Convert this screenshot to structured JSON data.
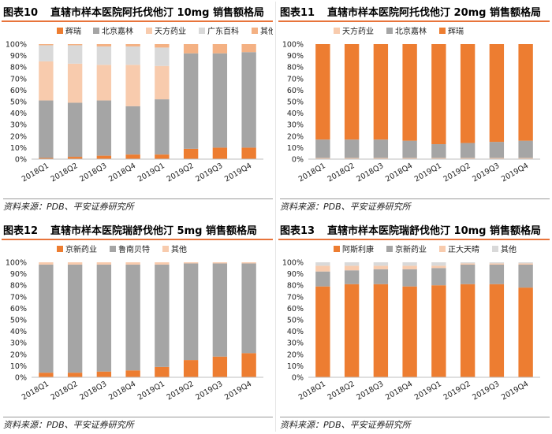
{
  "panels": [
    {
      "fig_no": "图表10",
      "title": "直辖市样本医院阿托伐他汀 10mg 销售额格局",
      "source": "资料来源：PDB、平安证券研究所",
      "chart_data": {
        "type": "bar",
        "stacked": true,
        "categories": [
          "2018Q1",
          "2018Q2",
          "2018Q3",
          "2018Q4",
          "2019Q1",
          "2019Q2",
          "2019Q3",
          "2019Q4"
        ],
        "ylim": [
          0,
          100
        ],
        "y_ticks": [
          "0%",
          "10%",
          "20%",
          "30%",
          "40%",
          "50%",
          "60%",
          "70%",
          "80%",
          "90%",
          "100%"
        ],
        "legend": "top",
        "grid": false,
        "series": [
          {
            "name": "辉瑞",
            "color": "#ed7d31",
            "values": [
              1,
              2,
              3,
              4,
              4,
              9,
              10,
              10
            ]
          },
          {
            "name": "北京嘉林",
            "color": "#a5a5a5",
            "values": [
              50,
              47,
              48,
              42,
              48,
              83,
              82,
              83
            ]
          },
          {
            "name": "天方药业",
            "color": "#f8cbad",
            "values": [
              34,
              34,
              31,
              36,
              29,
              0,
              0,
              0
            ]
          },
          {
            "name": "广东百科",
            "color": "#d9d9d9",
            "values": [
              14,
              16,
              16,
              16,
              16,
              0,
              0,
              0
            ]
          },
          {
            "name": "其他",
            "color": "#f4b183",
            "values": [
              1,
              1,
              2,
              2,
              3,
              8,
              8,
              7
            ]
          }
        ]
      }
    },
    {
      "fig_no": "图表11",
      "title": "直辖市样本医院阿托伐他汀 20mg 销售额格局",
      "source": "资料来源：PDB、平安证券研究所",
      "chart_data": {
        "type": "bar",
        "stacked": true,
        "categories": [
          "2018Q1",
          "2018Q2",
          "2018Q3",
          "2018Q4",
          "2019Q1",
          "2019Q2",
          "2019Q3",
          "2019Q4"
        ],
        "ylim": [
          0,
          100
        ],
        "y_ticks": [
          "0%",
          "10%",
          "20%",
          "30%",
          "40%",
          "50%",
          "60%",
          "70%",
          "80%",
          "90%",
          "100%"
        ],
        "legend": "top",
        "grid": false,
        "series": [
          {
            "name": "天方药业",
            "color": "#f8cbad",
            "values": [
              1,
              1,
              1,
              1,
              1,
              1,
              1,
              1
            ]
          },
          {
            "name": "北京嘉林",
            "color": "#a5a5a5",
            "values": [
              16,
              16,
              16,
              15,
              12,
              13,
              14,
              15
            ]
          },
          {
            "name": "辉瑞",
            "color": "#ed7d31",
            "values": [
              83,
              83,
              83,
              84,
              87,
              86,
              85,
              84
            ]
          }
        ]
      }
    },
    {
      "fig_no": "图表12",
      "title": "直辖市样本医院瑞舒伐他汀 5mg 销售额格局",
      "source": "资料来源：PDB、平安证券研究所",
      "chart_data": {
        "type": "bar",
        "stacked": true,
        "categories": [
          "2018Q1",
          "2018Q2",
          "2018Q3",
          "2018Q4",
          "2019Q1",
          "2019Q2",
          "2019Q3",
          "2019Q4"
        ],
        "ylim": [
          0,
          100
        ],
        "y_ticks": [
          "0%",
          "10%",
          "20%",
          "30%",
          "40%",
          "50%",
          "60%",
          "70%",
          "80%",
          "90%",
          "100%"
        ],
        "legend": "top",
        "grid": false,
        "series": [
          {
            "name": "京新药业",
            "color": "#ed7d31",
            "values": [
              4,
              4,
              5,
              6,
              9,
              15,
              18,
              21
            ]
          },
          {
            "name": "鲁南贝特",
            "color": "#a5a5a5",
            "values": [
              94,
              94,
              93,
              92,
              89,
              84,
              81,
              78
            ]
          },
          {
            "name": "其他",
            "color": "#f8cbad",
            "values": [
              2,
              2,
              2,
              2,
              2,
              1,
              1,
              1
            ]
          }
        ]
      }
    },
    {
      "fig_no": "图表13",
      "title": "直辖市样本医院瑞舒伐他汀 10mg 销售额格局",
      "source": "资料来源：PDB、平安证券研究所",
      "chart_data": {
        "type": "bar",
        "stacked": true,
        "categories": [
          "2018Q1",
          "2018Q2",
          "2018Q3",
          "2018Q4",
          "2019Q1",
          "2019Q2",
          "2019Q3",
          "2019Q4"
        ],
        "ylim": [
          0,
          100
        ],
        "y_ticks": [
          "0%",
          "10%",
          "20%",
          "30%",
          "40%",
          "50%",
          "60%",
          "70%",
          "80%",
          "90%",
          "100%"
        ],
        "legend": "top",
        "grid": false,
        "series": [
          {
            "name": "阿斯利康",
            "color": "#ed7d31",
            "values": [
              79,
              81,
              81,
              79,
              80,
              81,
              81,
              78
            ]
          },
          {
            "name": "京新药业",
            "color": "#a5a5a5",
            "values": [
              13,
              12,
              13,
              15,
              15,
              17,
              17,
              20
            ]
          },
          {
            "name": "正大天晴",
            "color": "#f8cbad",
            "values": [
              5,
              4,
              3,
              3,
              2,
              1,
              1,
              1
            ]
          },
          {
            "name": "其他",
            "color": "#d9d9d9",
            "values": [
              3,
              3,
              3,
              3,
              3,
              1,
              1,
              1
            ]
          }
        ]
      }
    }
  ]
}
